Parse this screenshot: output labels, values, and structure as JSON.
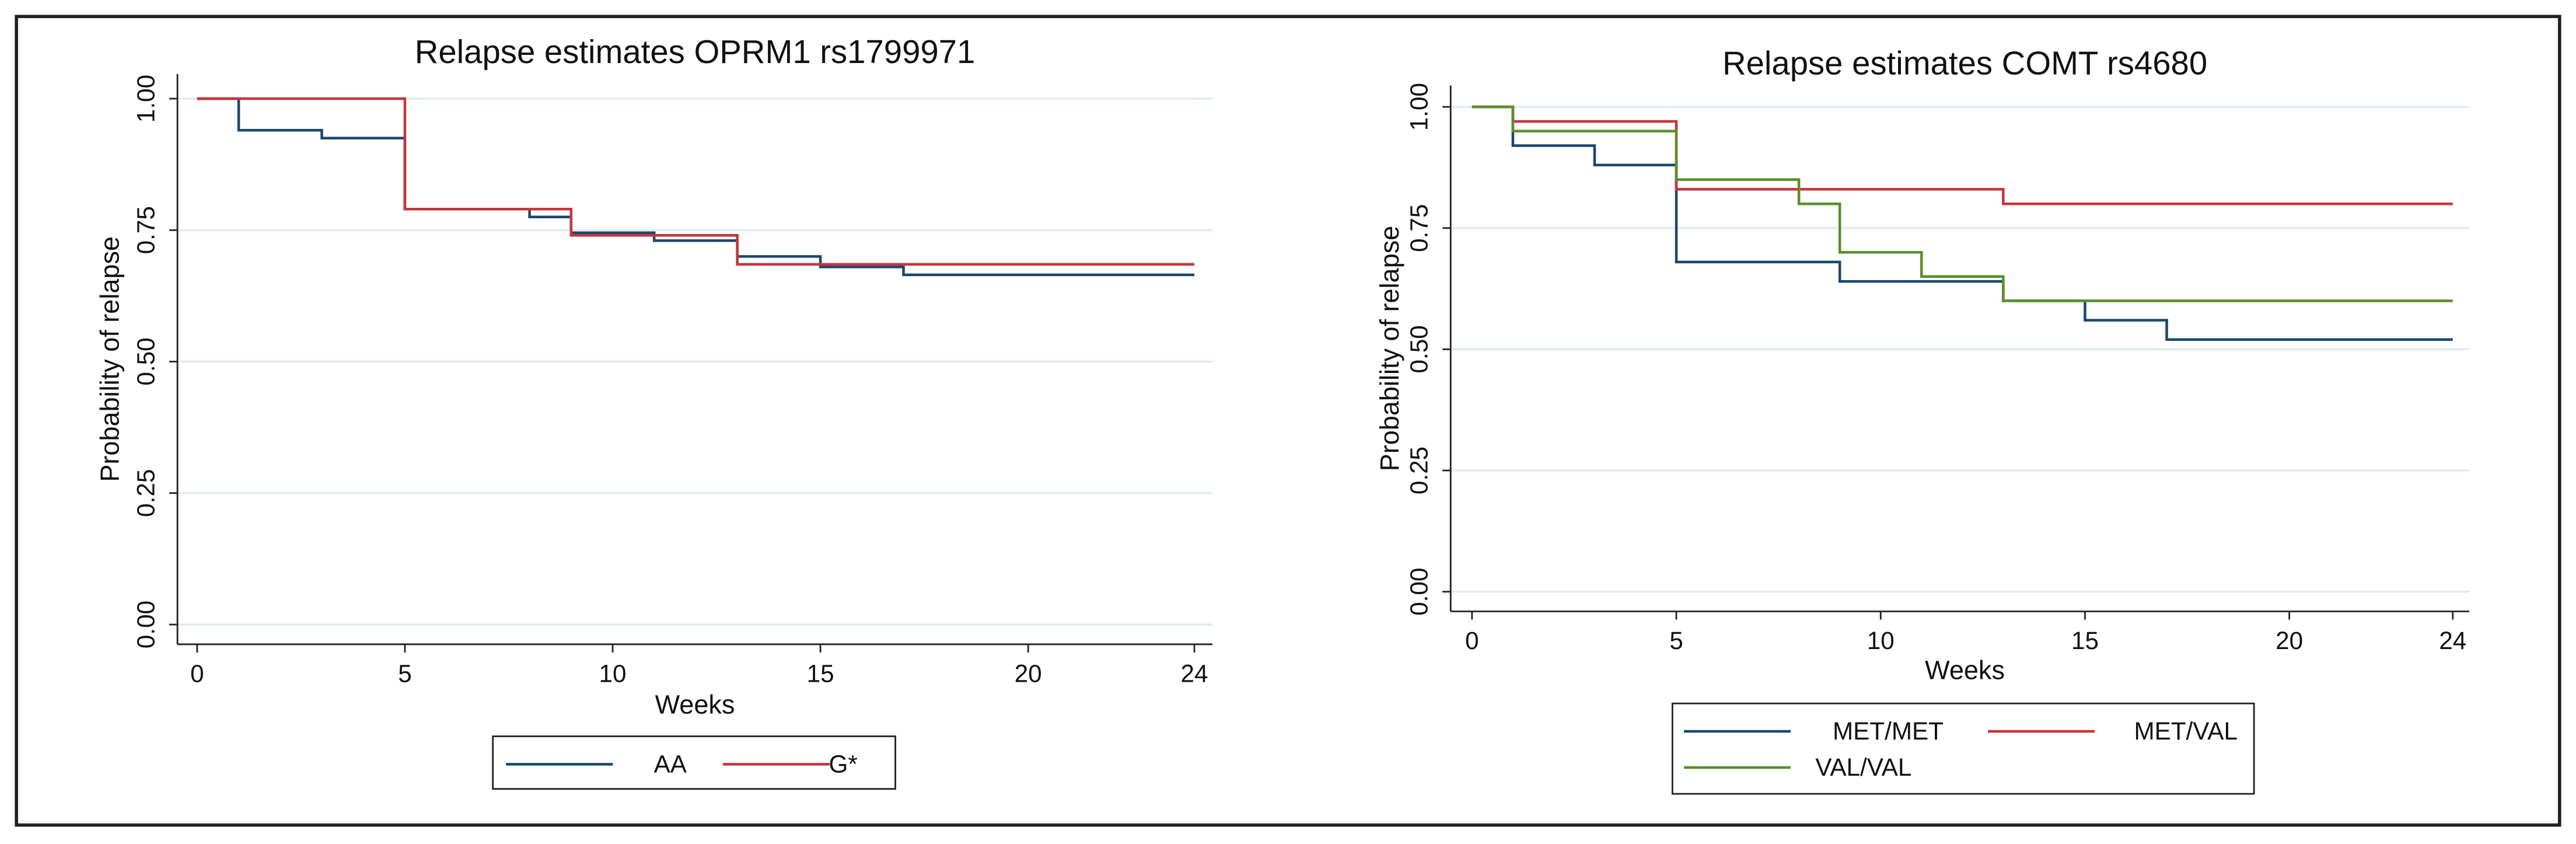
{
  "chart_data": [
    {
      "type": "step",
      "title": "Relapse estimates OPRM1 rs1799971",
      "xlabel": "Weeks",
      "ylabel": "Probability of relapse",
      "xlim": [
        0,
        24
      ],
      "xticks": [
        0,
        5,
        10,
        15,
        20,
        24
      ],
      "ylim": [
        0,
        1
      ],
      "yticks": [
        {
          "value": 0,
          "label": "0.00"
        },
        {
          "value": 0.25,
          "label": "0.25"
        },
        {
          "value": 0.5,
          "label": "0.50"
        },
        {
          "value": 0.75,
          "label": "0.75"
        },
        {
          "value": 1,
          "label": "1.00"
        }
      ],
      "grid": true,
      "legend": "bottom",
      "series": [
        {
          "name": "AA",
          "color": "#1a476f",
          "x": [
            0,
            1,
            3,
            5,
            8,
            9,
            11,
            13,
            15,
            17,
            24
          ],
          "values": [
            1,
            0.94,
            0.925,
            0.79,
            0.775,
            0.745,
            0.73,
            0.7,
            0.68,
            0.665,
            0.665
          ]
        },
        {
          "name": "G*",
          "color": "#c8343c",
          "x": [
            0,
            5,
            9,
            13,
            24
          ],
          "values": [
            1,
            0.79,
            0.74,
            0.685,
            0.685
          ]
        }
      ]
    },
    {
      "type": "step",
      "title": "Relapse estimates COMT rs4680",
      "xlabel": "Weeks",
      "ylabel": "Probability of relapse",
      "xlim": [
        0,
        24
      ],
      "xticks": [
        0,
        5,
        10,
        15,
        20,
        24
      ],
      "ylim": [
        0,
        1
      ],
      "yticks": [
        {
          "value": 0,
          "label": "0.00"
        },
        {
          "value": 0.25,
          "label": "0.25"
        },
        {
          "value": 0.5,
          "label": "0.50"
        },
        {
          "value": 0.75,
          "label": "0.75"
        },
        {
          "value": 1,
          "label": "1.00"
        }
      ],
      "grid": true,
      "legend": "bottom",
      "series": [
        {
          "name": "MET/MET",
          "color": "#1a476f",
          "x": [
            0,
            1,
            3,
            5,
            9,
            13,
            15,
            17,
            24
          ],
          "values": [
            1,
            0.92,
            0.88,
            0.68,
            0.64,
            0.6,
            0.56,
            0.52,
            0.52
          ]
        },
        {
          "name": "MET/VAL",
          "color": "#c8343c",
          "x": [
            0,
            1,
            5,
            13,
            24
          ],
          "values": [
            1,
            0.97,
            0.83,
            0.8,
            0.8
          ]
        },
        {
          "name": "VAL/VAL",
          "color": "#5a8f2a",
          "x": [
            0,
            1,
            5,
            8,
            9,
            11,
            13,
            24
          ],
          "values": [
            1,
            0.95,
            0.85,
            0.8,
            0.7,
            0.65,
            0.6,
            0.6
          ]
        }
      ]
    }
  ]
}
